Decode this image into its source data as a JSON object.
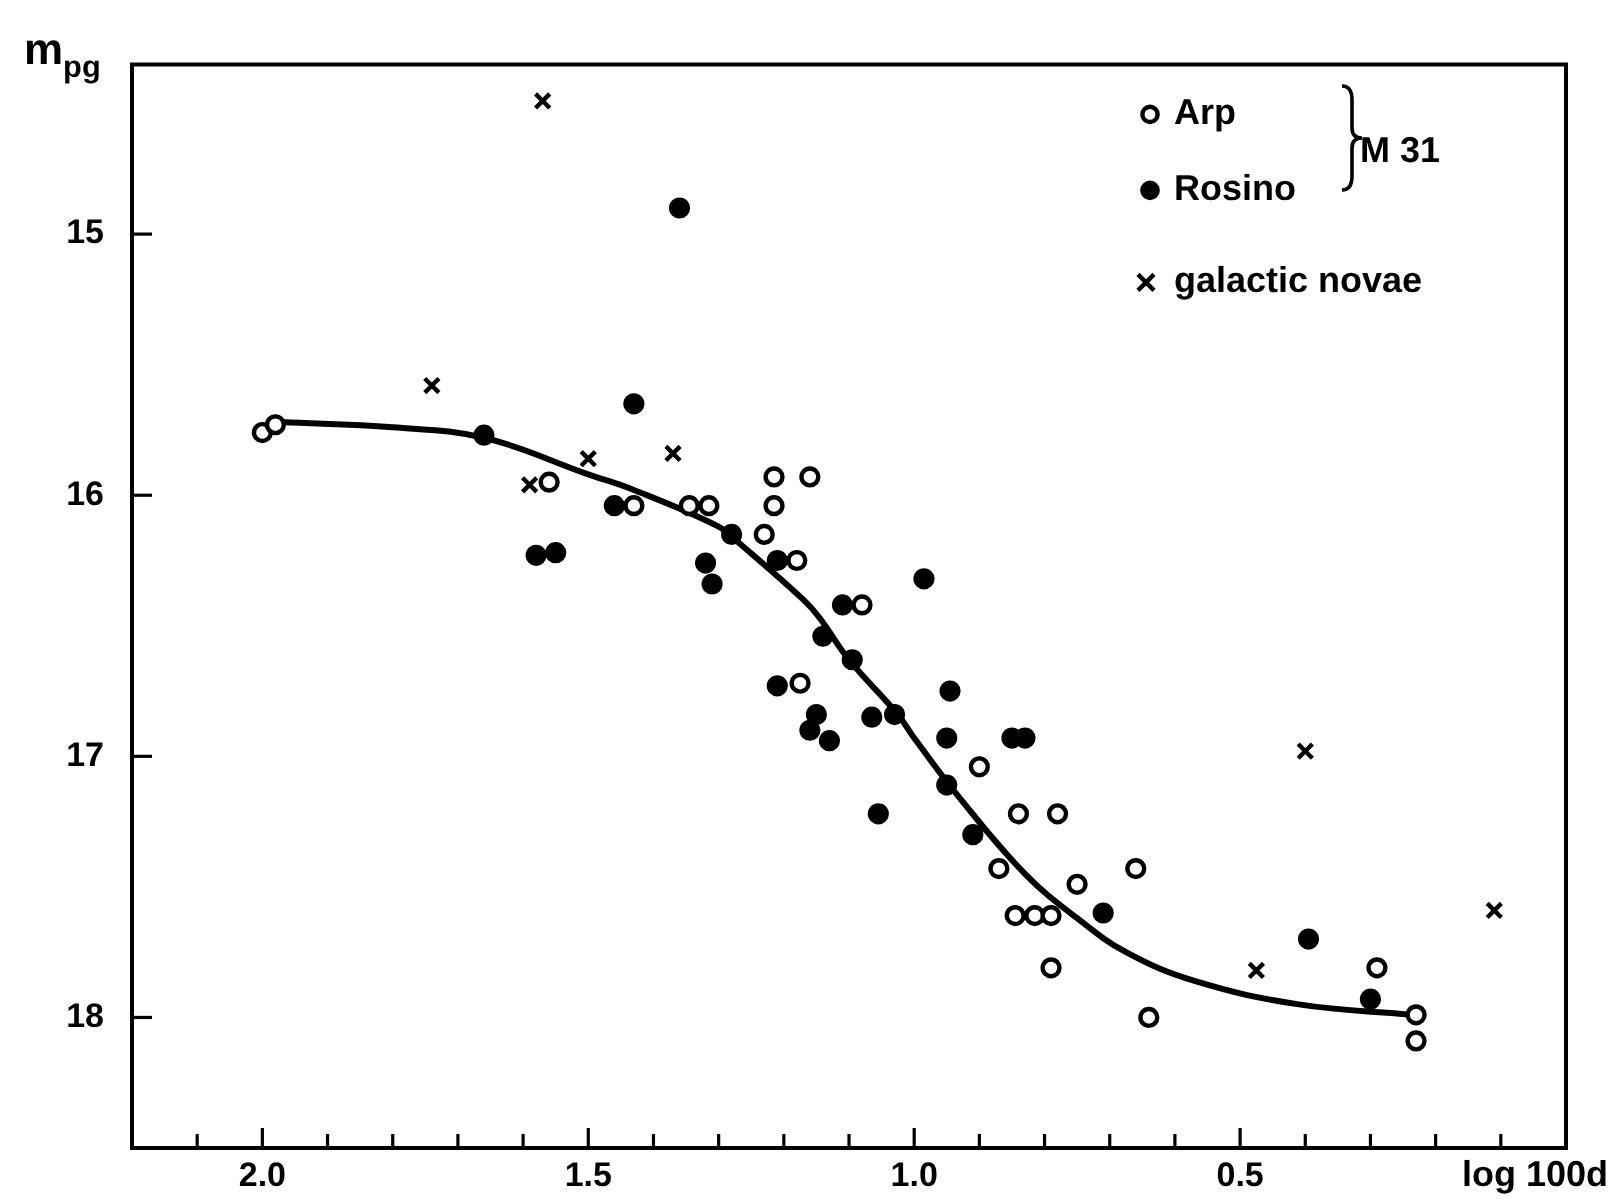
{
  "chart_data": {
    "type": "scatter",
    "ylabel": "m$_{pg}$",
    "xlabel": "log 100d",
    "annotations": [
      "M 31"
    ],
    "xlim": [
      2.2,
      0.0
    ],
    "ylim": [
      18.5,
      14.35
    ],
    "xticks": [
      {
        "value": 2.1,
        "label": null
      },
      {
        "value": 2.0,
        "label": "2.0"
      },
      {
        "value": 1.9,
        "label": null
      },
      {
        "value": 1.8,
        "label": null
      },
      {
        "value": 1.7,
        "label": null
      },
      {
        "value": 1.6,
        "label": null
      },
      {
        "value": 1.5,
        "label": "1.5"
      },
      {
        "value": 1.4,
        "label": null
      },
      {
        "value": 1.3,
        "label": null
      },
      {
        "value": 1.2,
        "label": null
      },
      {
        "value": 1.1,
        "label": null
      },
      {
        "value": 1.0,
        "label": "1.0"
      },
      {
        "value": 0.9,
        "label": null
      },
      {
        "value": 0.8,
        "label": null
      },
      {
        "value": 0.7,
        "label": null
      },
      {
        "value": 0.6,
        "label": null
      },
      {
        "value": 0.5,
        "label": "0.5"
      },
      {
        "value": 0.4,
        "label": null
      },
      {
        "value": 0.3,
        "label": null
      },
      {
        "value": 0.2,
        "label": null
      },
      {
        "value": 0.1,
        "label": null
      }
    ],
    "yticks": [
      15,
      16,
      17,
      18
    ],
    "grid": false,
    "legend": "top right",
    "series": [
      {
        "name": "Arp",
        "marker": "circle",
        "color": "#ffffff",
        "x": [
          2.0,
          1.98,
          1.56,
          1.43,
          1.345,
          1.315,
          1.23,
          1.215,
          1.215,
          1.16,
          1.18,
          1.08,
          1.175,
          0.9,
          0.84,
          0.78,
          0.87,
          0.66,
          0.75,
          0.845,
          0.815,
          0.79,
          0.79,
          0.64,
          0.29,
          0.23,
          0.23
        ],
        "values": [
          15.76,
          15.73,
          15.95,
          16.04,
          16.04,
          16.04,
          16.15,
          15.93,
          16.04,
          15.93,
          16.25,
          16.42,
          16.72,
          17.04,
          17.22,
          17.22,
          17.43,
          17.43,
          17.49,
          17.61,
          17.61,
          17.61,
          17.81,
          18.0,
          17.81,
          17.99,
          18.09
        ]
      },
      {
        "name": "Rosino",
        "marker": "circle",
        "color": "#000000",
        "x": [
          1.66,
          1.36,
          1.43,
          1.46,
          1.58,
          1.55,
          1.28,
          1.32,
          1.31,
          1.21,
          0.985,
          1.11,
          1.14,
          1.21,
          1.15,
          1.16,
          1.13,
          1.095,
          1.065,
          1.03,
          1.055,
          0.945,
          0.95,
          0.85,
          0.83,
          0.95,
          0.91,
          0.71,
          0.395,
          0.3
        ],
        "values": [
          15.77,
          14.9,
          15.65,
          16.04,
          16.23,
          16.22,
          16.15,
          16.26,
          16.34,
          16.25,
          16.32,
          16.42,
          16.54,
          16.73,
          16.84,
          16.9,
          16.94,
          16.63,
          16.85,
          16.84,
          17.22,
          16.75,
          16.93,
          16.93,
          16.93,
          17.11,
          17.3,
          17.6,
          17.7,
          17.93
        ]
      },
      {
        "name": "galactic novae",
        "marker": "cross",
        "color": "#000000",
        "x": [
          1.57,
          1.74,
          1.59,
          1.5,
          1.37,
          0.4,
          0.475,
          0.11
        ],
        "values": [
          14.49,
          15.58,
          15.96,
          15.86,
          15.84,
          16.98,
          17.82,
          17.59
        ]
      },
      {
        "type": "line",
        "marker": "none",
        "color": "#000000",
        "x": [
          1.97,
          1.8,
          1.66,
          1.5,
          1.43,
          1.3,
          1.27,
          1.17,
          1.145,
          1.1,
          1.025,
          1.0,
          0.93,
          0.83,
          0.75,
          0.675,
          0.57,
          0.41,
          0.235
        ],
        "values": [
          15.72,
          15.74,
          15.78,
          15.92,
          15.98,
          16.12,
          16.18,
          16.4,
          16.47,
          16.63,
          16.84,
          16.93,
          17.16,
          17.45,
          17.62,
          17.75,
          17.86,
          17.95,
          17.99
        ]
      }
    ]
  }
}
